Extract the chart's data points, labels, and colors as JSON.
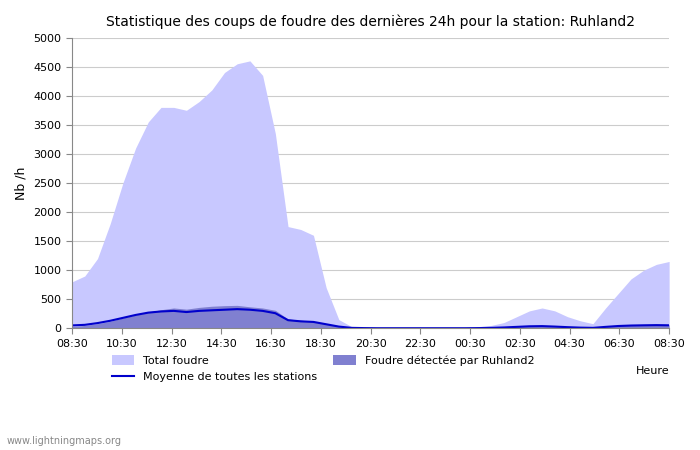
{
  "title": "Statistique des coups de foudre des dernières 24h pour la station: Ruhland2",
  "ylabel": "Nb /h",
  "xlabel": "Heure",
  "watermark": "www.lightningmaps.org",
  "ylim": [
    0,
    5000
  ],
  "yticks": [
    0,
    500,
    1000,
    1500,
    2000,
    2500,
    3000,
    3500,
    4000,
    4500,
    5000
  ],
  "xtick_labels": [
    "08:30",
    "10:30",
    "12:30",
    "14:30",
    "16:30",
    "18:30",
    "20:30",
    "22:30",
    "00:30",
    "02:30",
    "04:30",
    "06:30",
    "08:30"
  ],
  "legend_total": "Total foudre",
  "legend_station": "Foudre détectée par Ruhland2",
  "legend_mean": "Moyenne de toutes les stations",
  "color_total": "#c8c8ff",
  "color_station": "#8080d0",
  "color_mean": "#0000cc",
  "bg_color": "#ffffff",
  "grid_color": "#cccccc",
  "total_foudre": [
    800,
    900,
    1200,
    1800,
    2500,
    3100,
    3550,
    3800,
    3800,
    3750,
    3900,
    4100,
    4400,
    4550,
    4600,
    4350,
    3350,
    1750,
    1700,
    1600,
    700,
    150,
    30,
    10,
    5,
    10,
    5,
    5,
    5,
    5,
    5,
    10,
    30,
    50,
    100,
    200,
    300,
    350,
    300,
    200,
    130,
    80,
    350,
    600,
    850,
    1000,
    1100,
    1150
  ],
  "station_foudre": [
    30,
    50,
    80,
    120,
    180,
    230,
    280,
    320,
    350,
    330,
    360,
    380,
    390,
    395,
    370,
    350,
    310,
    160,
    140,
    120,
    80,
    40,
    10,
    5,
    2,
    2,
    2,
    2,
    2,
    2,
    2,
    2,
    5,
    10,
    20,
    30,
    40,
    45,
    35,
    25,
    15,
    10,
    30,
    45,
    55,
    60,
    65,
    60
  ],
  "mean_foudre": [
    50,
    60,
    90,
    130,
    180,
    230,
    270,
    290,
    300,
    280,
    300,
    310,
    320,
    330,
    320,
    300,
    260,
    140,
    120,
    110,
    70,
    30,
    8,
    4,
    2,
    2,
    2,
    2,
    2,
    2,
    2,
    2,
    4,
    8,
    15,
    25,
    35,
    38,
    30,
    20,
    12,
    8,
    25,
    40,
    48,
    52,
    55,
    52
  ]
}
